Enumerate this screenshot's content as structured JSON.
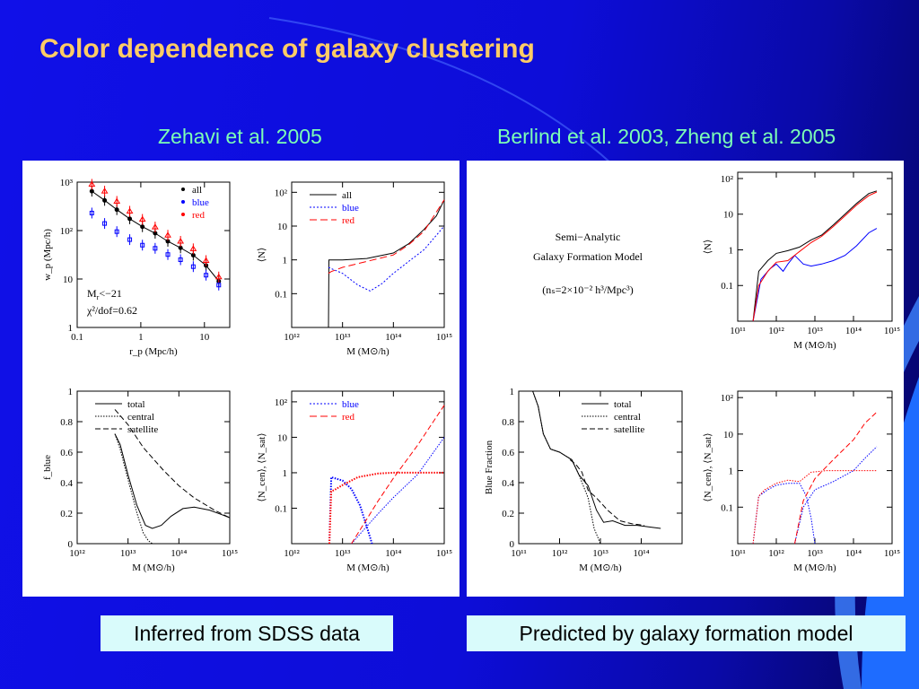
{
  "slide": {
    "title": "Color dependence of galaxy clustering",
    "left_heading": "Zehavi et al. 2005",
    "right_heading": "Berlind et al. 2003, Zheng et al. 2005",
    "left_caption": "Inferred from SDSS data",
    "right_caption": "Predicted by galaxy formation model",
    "annotation": {
      "mr": "M",
      "mr_sub": "r",
      "mr_rest": "<−21",
      "chi": "χ²/dof=0.62",
      "sam_line1": "Semi−Analytic",
      "sam_line2": "Galaxy Formation Model",
      "sam_line3": "(nₛ=2×10⁻² h³/Mpc³)"
    }
  },
  "colors": {
    "black": "#000000",
    "blue": "#0000ff",
    "red": "#ff0000"
  },
  "chart_data": [
    {
      "id": "wp",
      "type": "scatter",
      "xlabel": "r_p (Mpc/h)",
      "ylabel": "w_p (Mpc/h)",
      "xscale": "log",
      "yscale": "log",
      "xlim": [
        0.1,
        25
      ],
      "ylim": [
        1,
        1000
      ],
      "xticks": [
        "0.1",
        "1",
        "10"
      ],
      "yticks": [
        "1",
        "10",
        "10²",
        "10³"
      ],
      "legend": [
        "all",
        "blue",
        "red"
      ],
      "series": [
        {
          "name": "all",
          "x": [
            0.17,
            0.27,
            0.42,
            0.67,
            1.06,
            1.68,
            2.66,
            4.21,
            6.68,
            10.6,
            16.8
          ],
          "y": [
            650,
            420,
            270,
            175,
            120,
            88,
            60,
            44,
            31,
            19,
            9
          ]
        },
        {
          "name": "blue",
          "x": [
            0.17,
            0.27,
            0.42,
            0.67,
            1.06,
            1.68,
            2.66,
            4.21,
            6.68,
            10.6,
            16.8
          ],
          "y": [
            230,
            140,
            95,
            65,
            50,
            43,
            32,
            25,
            18,
            12,
            7.5
          ]
        },
        {
          "name": "red",
          "x": [
            0.17,
            0.27,
            0.42,
            0.67,
            1.06,
            1.68,
            2.66,
            4.21,
            6.68,
            10.6,
            16.8
          ],
          "y": [
            900,
            650,
            400,
            250,
            170,
            118,
            80,
            60,
            42,
            24,
            11
          ]
        }
      ]
    },
    {
      "id": "N",
      "type": "line",
      "xlabel": "M (M⊙/h)",
      "ylabel": "⟨N⟩",
      "xscale": "log",
      "yscale": "log",
      "xlim": [
        1000000000000.0,
        1000000000000000.0
      ],
      "ylim": [
        0.01,
        200
      ],
      "xticks": [
        "10¹²",
        "10¹³",
        "10¹⁴",
        "10¹⁵"
      ],
      "yticks": [
        "0.1",
        "1",
        "10",
        "10²"
      ],
      "legend": [
        "all",
        "blue",
        "red"
      ],
      "series": [
        {
          "name": "all",
          "x": [
            5300000000000.0,
            5400000000000.0,
            10000000000000.0,
            30000000000000.0,
            100000000000000.0,
            200000000000000.0,
            400000000000000.0,
            700000000000000.0,
            1000000000000000.0
          ],
          "y": [
            0.01,
            1,
            1,
            1.1,
            1.6,
            3,
            8,
            20,
            60
          ]
        },
        {
          "name": "blue",
          "x": [
            5300000000000.0,
            6000000000000.0,
            10000000000000.0,
            20000000000000.0,
            35000000000000.0,
            60000000000000.0,
            100000000000000.0,
            200000000000000.0,
            400000000000000.0,
            1000000000000000.0
          ],
          "y": [
            0.6,
            0.55,
            0.4,
            0.18,
            0.12,
            0.2,
            0.4,
            0.9,
            2,
            10
          ]
        },
        {
          "name": "red",
          "x": [
            5300000000000.0,
            6000000000000.0,
            10000000000000.0,
            30000000000000.0,
            100000000000000.0,
            200000000000000.0,
            400000000000000.0,
            1000000000000000.0
          ],
          "y": [
            0.4,
            0.45,
            0.6,
            0.9,
            1.4,
            2.8,
            7,
            60
          ]
        }
      ]
    },
    {
      "id": "fblue",
      "type": "line",
      "xlabel": "M (M⊙/h)",
      "ylabel": "f_blue",
      "xscale": "log",
      "yscale": "linear",
      "xlim": [
        1000000000000.0,
        1000000000000000.0
      ],
      "ylim": [
        0,
        1
      ],
      "xticks": [
        "10¹²",
        "10¹³",
        "10¹⁴",
        "10¹⁵"
      ],
      "yticks": [
        "0",
        "0.2",
        "0.4",
        "0.6",
        "0.8",
        "1"
      ],
      "legend": [
        "total",
        "central",
        "satellite"
      ],
      "series": [
        {
          "name": "total",
          "x": [
            5500000000000.0,
            7000000000000.0,
            10000000000000.0,
            15000000000000.0,
            22000000000000.0,
            30000000000000.0,
            45000000000000.0,
            70000000000000.0,
            120000000000000.0,
            200000000000000.0,
            400000000000000.0,
            700000000000000.0,
            1000000000000000.0
          ],
          "y": [
            0.72,
            0.65,
            0.45,
            0.25,
            0.12,
            0.1,
            0.12,
            0.18,
            0.23,
            0.24,
            0.22,
            0.19,
            0.17
          ]
        },
        {
          "name": "central",
          "x": [
            5500000000000.0,
            7000000000000.0,
            10000000000000.0,
            15000000000000.0,
            20000000000000.0,
            25000000000000.0,
            30000000000000.0
          ],
          "y": [
            0.72,
            0.62,
            0.42,
            0.2,
            0.07,
            0.02,
            0
          ]
        },
        {
          "name": "satellite",
          "x": [
            5500000000000.0,
            10000000000000.0,
            20000000000000.0,
            50000000000000.0,
            100000000000000.0,
            200000000000000.0,
            500000000000000.0,
            1000000000000000.0
          ],
          "y": [
            0.88,
            0.78,
            0.63,
            0.48,
            0.38,
            0.3,
            0.22,
            0.17
          ]
        }
      ]
    },
    {
      "id": "Ncs",
      "type": "line",
      "xlabel": "M (M⊙/h)",
      "ylabel": "⟨N_cen⟩, ⟨N_sat⟩",
      "xscale": "log",
      "yscale": "log",
      "xlim": [
        1000000000000.0,
        1000000000000000.0
      ],
      "ylim": [
        0.01,
        200
      ],
      "xticks": [
        "10¹²",
        "10¹³",
        "10¹⁴",
        "10¹⁵"
      ],
      "yticks": [
        "0.1",
        "1",
        "10",
        "10²"
      ],
      "legend": [
        "blue",
        "red"
      ],
      "series": [
        {
          "name": "blue",
          "x": [
            5500000000000.0,
            6000000000000.0,
            10000000000000.0,
            15000000000000.0,
            22000000000000.0,
            30000000000000.0,
            38000000000000.0
          ],
          "y": [
            0.01,
            0.75,
            0.6,
            0.35,
            0.12,
            0.03,
            0.01
          ]
        },
        {
          "name": "blue",
          "x": [
            15000000000000.0,
            50000000000000.0,
            100000000000000.0,
            300000000000000.0,
            1000000000000000.0
          ],
          "y": [
            0.01,
            0.07,
            0.2,
            0.9,
            10
          ]
        },
        {
          "name": "red",
          "x": [
            5500000000000.0,
            6000000000000.0,
            7000000000000.0,
            10000000000000.0,
            20000000000000.0,
            50000000000000.0,
            100000000000000.0,
            300000000000000.0,
            1000000000000000.0
          ],
          "y": [
            0.01,
            0.3,
            0.33,
            0.45,
            0.75,
            0.95,
            1,
            1,
            1
          ]
        },
        {
          "name": "red",
          "x": [
            15000000000000.0,
            50000000000000.0,
            100000000000000.0,
            300000000000000.0,
            1000000000000000.0
          ],
          "y": [
            0.01,
            0.16,
            0.7,
            6,
            80
          ]
        }
      ]
    },
    {
      "id": "samN",
      "type": "line",
      "xlabel": "M (M⊙/h)",
      "ylabel": "⟨N⟩",
      "xscale": "log",
      "yscale": "log",
      "xlim": [
        100000000000.0,
        1000000000000000.0
      ],
      "ylim": [
        0.01,
        150
      ],
      "xticks": [
        "10¹¹",
        "10¹²",
        "10¹³",
        "10¹⁴",
        "10¹⁵"
      ],
      "yticks": [
        "0.1",
        "1",
        "10",
        "10²"
      ],
      "series": [
        {
          "name": "all",
          "x": [
            250000000000.0,
            350000000000.0,
            600000000000.0,
            1000000000000.0,
            2000000000000.0,
            4000000000000.0,
            8000000000000.0,
            15000000000000.0,
            30000000000000.0,
            60000000000000.0,
            120000000000000.0,
            250000000000000.0,
            400000000000000.0
          ],
          "y": [
            0.01,
            0.25,
            0.5,
            0.8,
            0.95,
            1.2,
            1.9,
            2.6,
            5,
            10,
            20,
            38,
            45
          ]
        },
        {
          "name": "blue",
          "x": [
            250000000000.0,
            400000000000.0,
            700000000000.0,
            1000000000000.0,
            1500000000000.0,
            2000000000000.0,
            3000000000000.0,
            5000000000000.0,
            8000000000000.0,
            15000000000000.0,
            30000000000000.0,
            60000000000000.0,
            120000000000000.0,
            250000000000000.0,
            400000000000000.0
          ],
          "y": [
            0.01,
            0.15,
            0.3,
            0.4,
            0.25,
            0.4,
            0.7,
            0.4,
            0.35,
            0.4,
            0.5,
            0.7,
            1.3,
            3,
            4
          ]
        },
        {
          "name": "red",
          "x": [
            250000000000.0,
            350000000000.0,
            600000000000.0,
            1000000000000.0,
            2000000000000.0,
            4000000000000.0,
            8000000000000.0,
            15000000000000.0,
            30000000000000.0,
            60000000000000.0,
            120000000000000.0,
            250000000000000.0,
            400000000000000.0
          ],
          "y": [
            0.01,
            0.1,
            0.25,
            0.45,
            0.5,
            0.9,
            1.6,
            2.4,
            4.5,
            9,
            18,
            33,
            42
          ]
        }
      ]
    },
    {
      "id": "samFrac",
      "type": "line",
      "xlabel": "M (M⊙/h)",
      "ylabel": "Blue Fraction",
      "xscale": "log",
      "yscale": "linear",
      "xlim": [
        100000000000.0,
        1000000000000000.0
      ],
      "ylim": [
        0,
        1
      ],
      "xticks": [
        "10¹¹",
        "10¹²",
        "10¹³",
        "10¹⁴"
      ],
      "yticks": [
        "0",
        "0.2",
        "0.4",
        "0.6",
        "0.8",
        "1"
      ],
      "legend": [
        "total",
        "central",
        "satellite"
      ],
      "series": [
        {
          "name": "total",
          "x": [
            220000000000.0,
            300000000000.0,
            400000000000.0,
            600000000000.0,
            1000000000000.0,
            2000000000000.0,
            3000000000000.0,
            5000000000000.0,
            8000000000000.0,
            12000000000000.0,
            20000000000000.0,
            40000000000000.0,
            80000000000000.0,
            150000000000000.0,
            300000000000000.0
          ],
          "y": [
            1,
            0.9,
            0.72,
            0.62,
            0.6,
            0.55,
            0.45,
            0.38,
            0.22,
            0.14,
            0.15,
            0.12,
            0.12,
            0.11,
            0.1
          ]
        },
        {
          "name": "central",
          "x": [
            220000000000.0,
            300000000000.0,
            400000000000.0,
            600000000000.0,
            1000000000000.0,
            2000000000000.0,
            3000000000000.0,
            5000000000000.0,
            7000000000000.0,
            10000000000000.0
          ],
          "y": [
            1,
            0.9,
            0.72,
            0.62,
            0.6,
            0.55,
            0.45,
            0.3,
            0.1,
            0
          ]
        },
        {
          "name": "satellite",
          "x": [
            1800000000000.0,
            2500000000000.0,
            3500000000000.0,
            5000000000000.0,
            8000000000000.0,
            15000000000000.0,
            30000000000000.0,
            60000000000000.0,
            120000000000000.0
          ],
          "y": [
            0.55,
            0.52,
            0.47,
            0.35,
            0.3,
            0.22,
            0.15,
            0.13,
            0.12
          ]
        }
      ]
    },
    {
      "id": "samNcs",
      "type": "line",
      "xlabel": "M (M⊙/h)",
      "ylabel": "⟨N_cen⟩, ⟨N_sat⟩",
      "xscale": "log",
      "yscale": "log",
      "xlim": [
        100000000000.0,
        1000000000000000.0
      ],
      "ylim": [
        0.01,
        150
      ],
      "xticks": [
        "10¹¹",
        "10¹²",
        "10¹³",
        "10¹⁴",
        "10¹⁵"
      ],
      "yticks": [
        "0.1",
        "1",
        "10",
        "10²"
      ],
      "series": [
        {
          "name": "blue",
          "x": [
            250000000000.0,
            350000000000.0,
            600000000000.0,
            1000000000000.0,
            2000000000000.0,
            4000000000000.0,
            6000000000000.0,
            8000000000000.0,
            10000000000000.0
          ],
          "y": [
            0.01,
            0.2,
            0.3,
            0.4,
            0.45,
            0.45,
            0.2,
            0.05,
            0.01
          ]
        },
        {
          "name": "blue",
          "x": [
            3000000000000.0,
            5000000000000.0,
            10000000000000.0,
            30000000000000.0,
            100000000000000.0,
            200000000000000.0,
            400000000000000.0
          ],
          "y": [
            0.01,
            0.1,
            0.3,
            0.5,
            1,
            2.2,
            4.5
          ]
        },
        {
          "name": "red",
          "x": [
            250000000000.0,
            350000000000.0,
            500000000000.0,
            1000000000000.0,
            2000000000000.0,
            4000000000000.0,
            8000000000000.0,
            20000000000000.0,
            100000000000000.0,
            400000000000000.0
          ],
          "y": [
            0.01,
            0.2,
            0.3,
            0.45,
            0.55,
            0.5,
            0.9,
            1,
            1,
            1
          ]
        },
        {
          "name": "red",
          "x": [
            3000000000000.0,
            5000000000000.0,
            10000000000000.0,
            30000000000000.0,
            100000000000000.0,
            200000000000000.0,
            400000000000000.0
          ],
          "y": [
            0.01,
            0.15,
            0.6,
            2,
            7,
            20,
            40
          ]
        }
      ]
    }
  ]
}
